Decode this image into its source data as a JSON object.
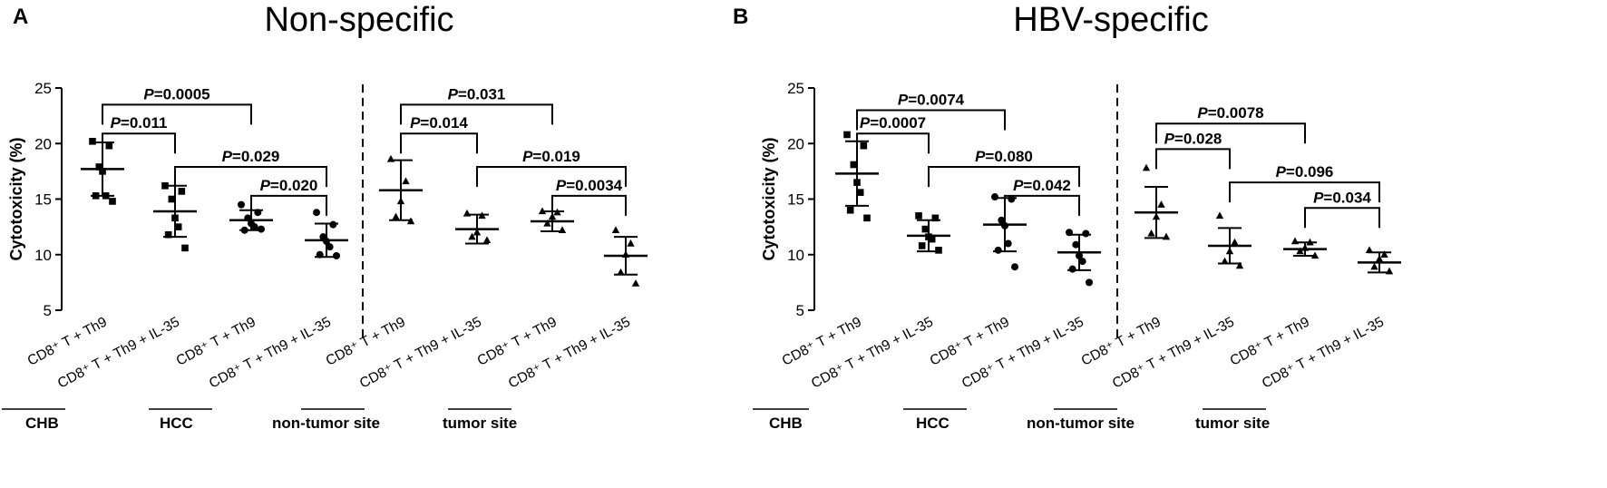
{
  "chart_data": [
    {
      "type": "scatter",
      "panel_label": "A",
      "title": "Non-specific",
      "ylabel": "Cytotoxicity (%)",
      "ylim": [
        5,
        25
      ],
      "yticks": [
        "5",
        "10",
        "15",
        "20",
        "25"
      ],
      "categories": [
        "CD8⁺ T + Th9",
        "CD8⁺ T + Th9 + IL-35",
        "CD8⁺ T + Th9",
        "CD8⁺ T + Th9 + IL-35",
        "CD8⁺ T + Th9",
        "CD8⁺ T + Th9 + IL-35",
        "CD8⁺ T + Th9",
        "CD8⁺ T + Th9 + IL-35"
      ],
      "groups": [
        "CHB",
        "HCC",
        "non-tumor site",
        "tumor site"
      ],
      "series": [
        {
          "marker": "square",
          "mean": 17.7,
          "sd": 2.4,
          "points": [
            20.2,
            19.8,
            17.9,
            17.5,
            15.3,
            15.3,
            14.8
          ]
        },
        {
          "marker": "square",
          "mean": 13.9,
          "sd": 2.3,
          "points": [
            16.2,
            15.7,
            15.0,
            13.3,
            12.5,
            11.8,
            10.6
          ]
        },
        {
          "marker": "circle",
          "mean": 13.1,
          "sd": 0.9,
          "points": [
            14.5,
            13.8,
            13.3,
            12.8,
            12.5,
            12.2,
            12.3
          ]
        },
        {
          "marker": "circle",
          "mean": 11.3,
          "sd": 1.5,
          "points": [
            13.8,
            12.7,
            11.6,
            11.2,
            10.7,
            10.0,
            9.9
          ]
        },
        {
          "marker": "triangle",
          "mean": 15.8,
          "sd": 2.7,
          "points": [
            18.6,
            16.6,
            14.8,
            13.4,
            13.0
          ]
        },
        {
          "marker": "triangle",
          "mean": 12.3,
          "sd": 1.3,
          "points": [
            13.7,
            13.5,
            12.0,
            11.6,
            11.3
          ]
        },
        {
          "marker": "triangle",
          "mean": 13.0,
          "sd": 0.9,
          "points": [
            13.9,
            13.8,
            13.4,
            12.8,
            12.2
          ]
        },
        {
          "marker": "triangle",
          "mean": 9.9,
          "sd": 1.7,
          "points": [
            12.2,
            11.0,
            10.0,
            8.4,
            7.4
          ]
        }
      ],
      "comparisons": [
        {
          "label": "P",
          "value": "=0.0005",
          "from": 0,
          "to": 2,
          "y": 23.5
        },
        {
          "label": "P",
          "value": "=0.011",
          "from": 0,
          "to": 1,
          "y": 20.9
        },
        {
          "label": "P",
          "value": "=0.029",
          "from": 1,
          "to": 3,
          "y": 17.9
        },
        {
          "label": "P",
          "value": "=0.020",
          "from": 2,
          "to": 3,
          "y": 15.3
        },
        {
          "label": "P",
          "value": "=0.031",
          "from": 4,
          "to": 6,
          "y": 23.5
        },
        {
          "label": "P",
          "value": "=0.014",
          "from": 4,
          "to": 5,
          "y": 20.9
        },
        {
          "label": "P",
          "value": "=0.019",
          "from": 5,
          "to": 7,
          "y": 17.9
        },
        {
          "label": "P",
          "value": "=0.0034",
          "from": 6,
          "to": 7,
          "y": 15.3
        }
      ]
    },
    {
      "type": "scatter",
      "panel_label": "B",
      "title": "HBV-specific",
      "ylabel": "Cytotoxicity (%)",
      "ylim": [
        5,
        25
      ],
      "yticks": [
        "5",
        "10",
        "15",
        "20",
        "25"
      ],
      "categories": [
        "CD8⁺ T + Th9",
        "CD8⁺ T + Th9 + IL-35",
        "CD8⁺ T + Th9",
        "CD8⁺ T + Th9 + IL-35",
        "CD8⁺ T + Th9",
        "CD8⁺ T + Th9 + IL-35",
        "CD8⁺ T + Th9",
        "CD8⁺ T + Th9 + IL-35"
      ],
      "groups": [
        "CHB",
        "HCC",
        "non-tumor site",
        "tumor site"
      ],
      "series": [
        {
          "marker": "square",
          "mean": 17.3,
          "sd": 2.9,
          "points": [
            20.8,
            19.8,
            18.1,
            16.5,
            15.6,
            14.0,
            13.3
          ]
        },
        {
          "marker": "square",
          "mean": 11.7,
          "sd": 1.4,
          "points": [
            13.5,
            13.3,
            12.3,
            11.6,
            11.4,
            10.8,
            10.4
          ]
        },
        {
          "marker": "circle",
          "mean": 12.7,
          "sd": 2.4,
          "points": [
            15.2,
            15.0,
            13.1,
            12.6,
            11.0,
            10.4,
            8.9
          ]
        },
        {
          "marker": "circle",
          "mean": 10.2,
          "sd": 1.6,
          "points": [
            12.0,
            11.9,
            10.9,
            9.9,
            9.4,
            8.7,
            7.5
          ]
        },
        {
          "marker": "triangle",
          "mean": 13.8,
          "sd": 2.3,
          "points": [
            17.8,
            14.5,
            13.4,
            11.9,
            11.6
          ]
        },
        {
          "marker": "triangle",
          "mean": 10.8,
          "sd": 1.6,
          "points": [
            13.5,
            11.1,
            10.3,
            9.4,
            9.0
          ]
        },
        {
          "marker": "triangle",
          "mean": 10.5,
          "sd": 0.6,
          "points": [
            11.2,
            11.1,
            10.6,
            10.3,
            9.9
          ]
        },
        {
          "marker": "triangle",
          "mean": 9.3,
          "sd": 0.9,
          "points": [
            10.4,
            10.0,
            9.6,
            8.9,
            8.5
          ]
        }
      ],
      "comparisons": [
        {
          "label": "P",
          "value": "=0.0074",
          "from": 0,
          "to": 2,
          "y": 23.0
        },
        {
          "label": "P",
          "value": "=0.0007",
          "from": 0,
          "to": 1,
          "y": 20.9
        },
        {
          "label": "P",
          "value": "=0.080",
          "from": 1,
          "to": 3,
          "y": 17.9
        },
        {
          "label": "P",
          "value": "=0.042",
          "from": 2,
          "to": 3,
          "y": 15.3
        },
        {
          "label": "P",
          "value": "=0.0078",
          "from": 4,
          "to": 6,
          "y": 21.8
        },
        {
          "label": "P",
          "value": "=0.028",
          "from": 4,
          "to": 5,
          "y": 19.5
        },
        {
          "label": "P",
          "value": "=0.096",
          "from": 5,
          "to": 7,
          "y": 16.5
        },
        {
          "label": "P",
          "value": "=0.034",
          "from": 6,
          "to": 7,
          "y": 14.2
        }
      ]
    }
  ]
}
